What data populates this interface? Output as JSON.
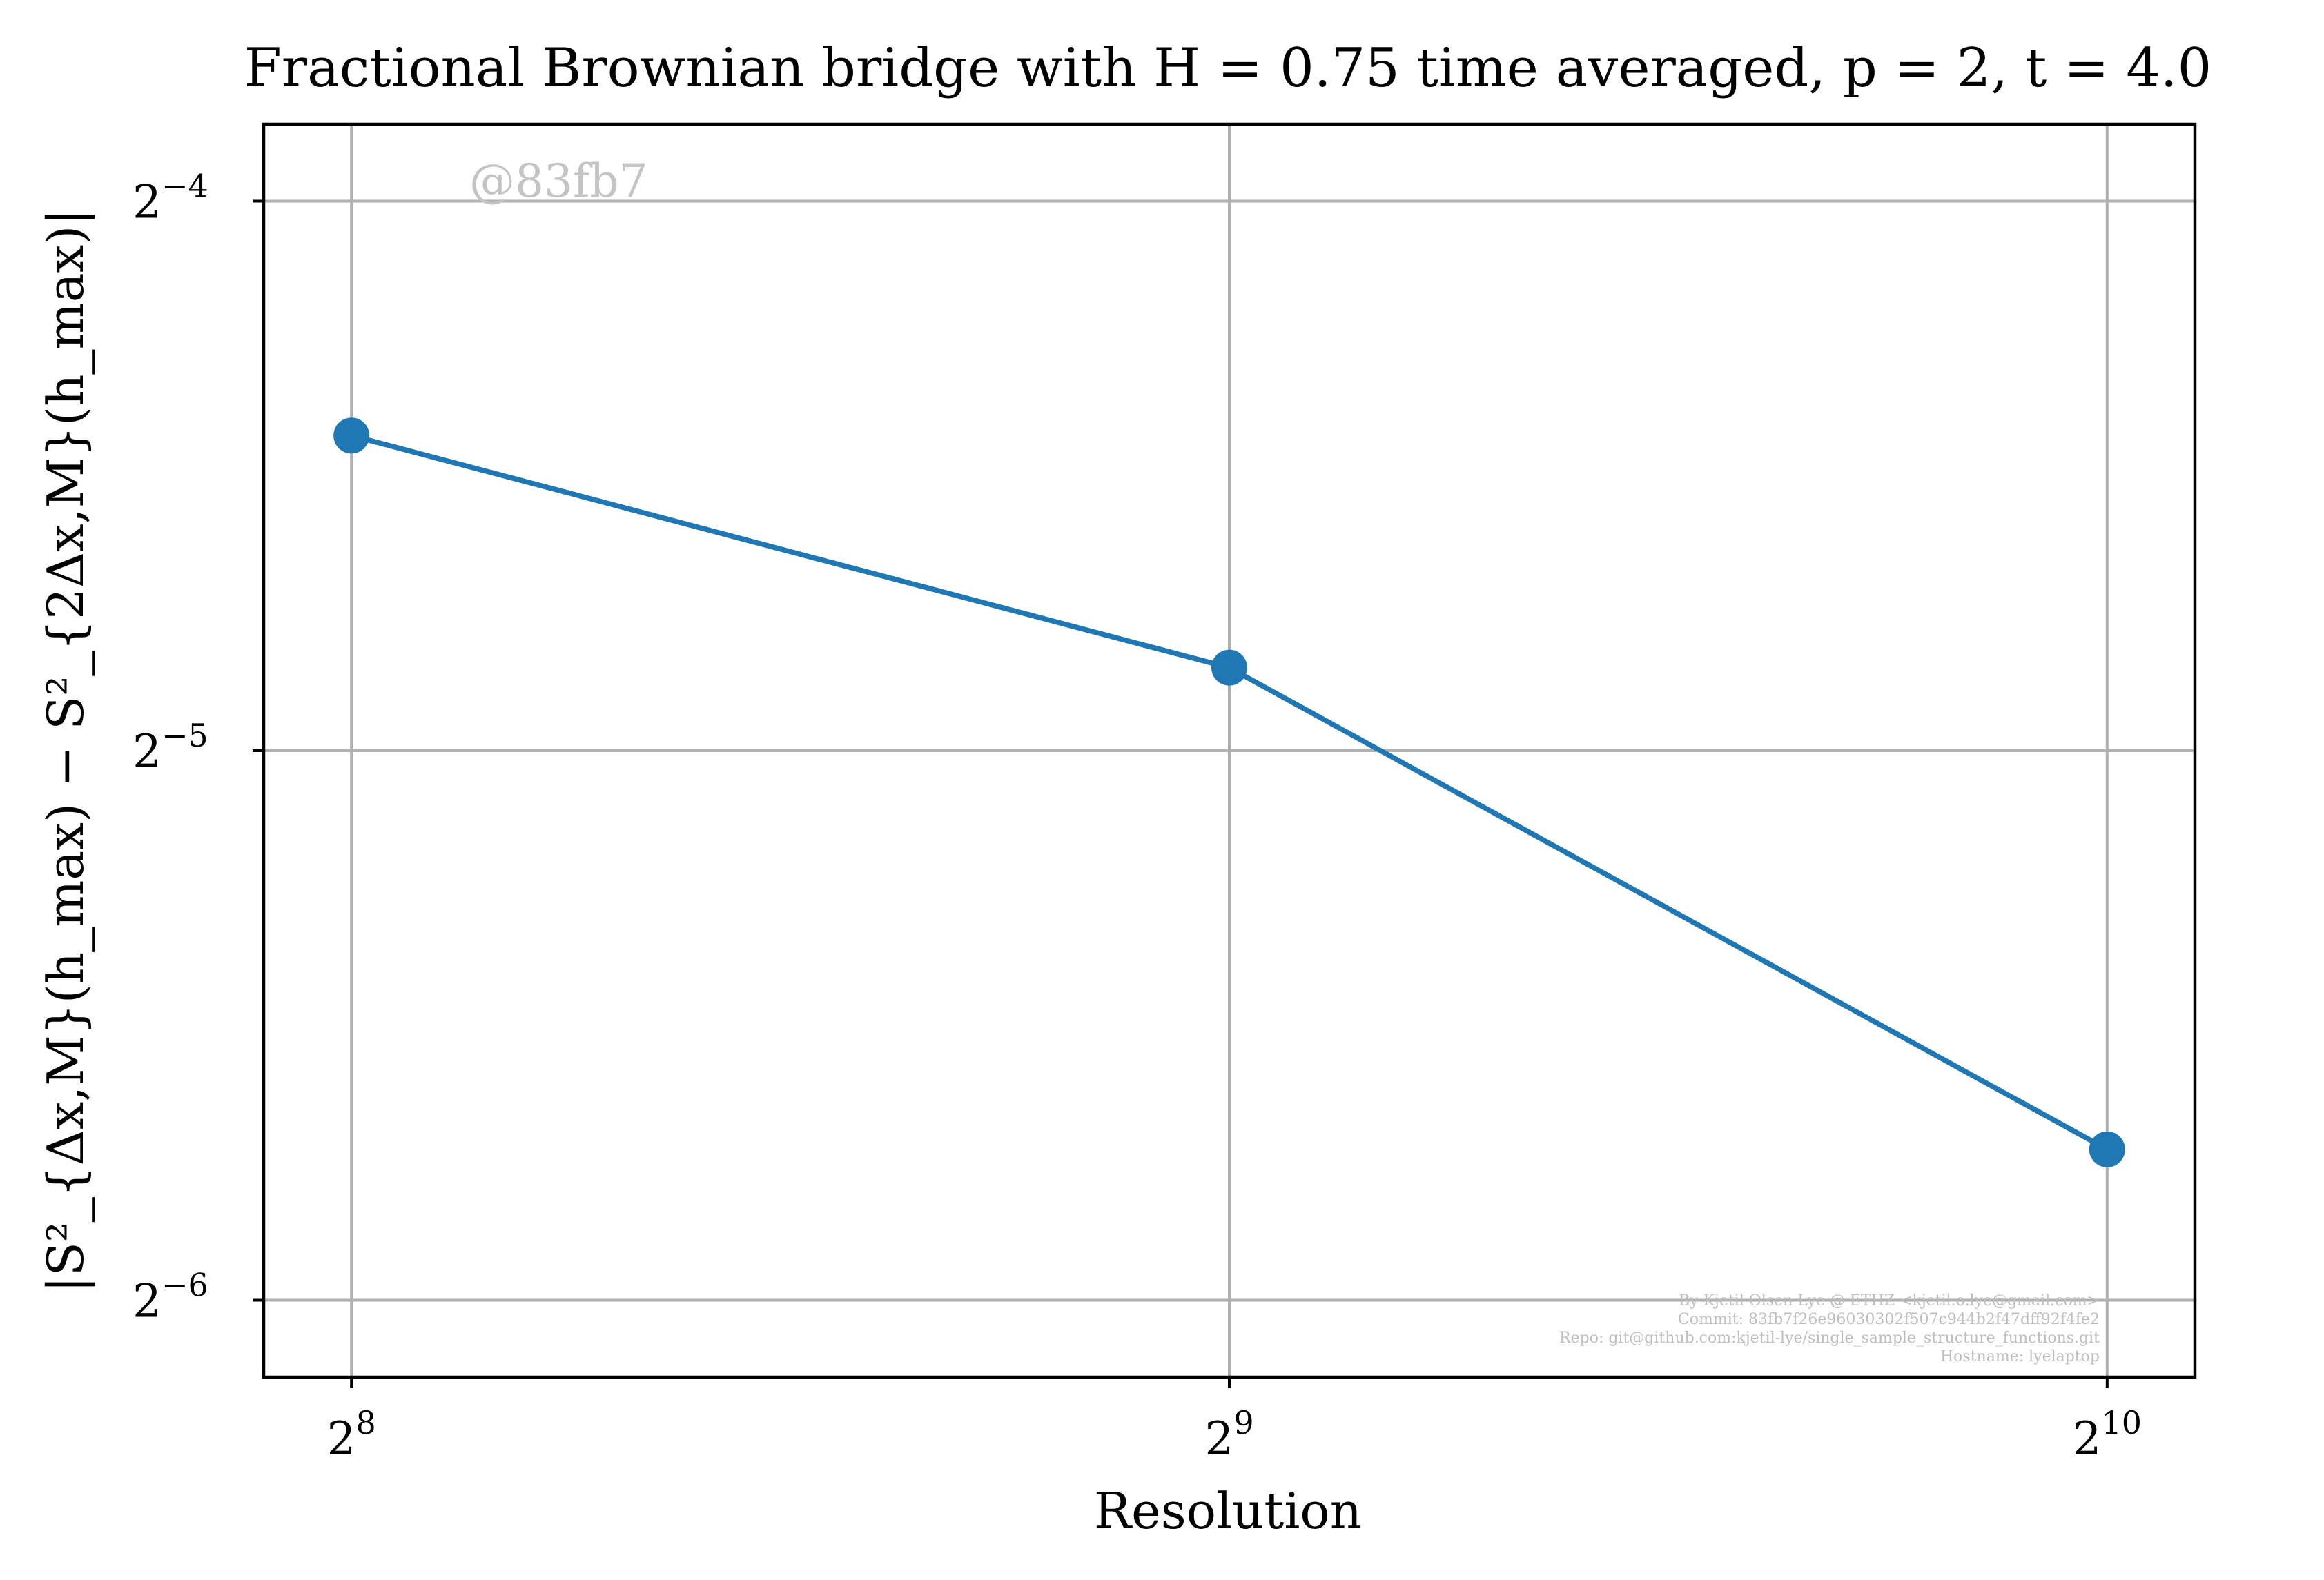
{
  "chart_data": {
    "type": "line",
    "title": "Fractional Brownian bridge with H = 0.75 time averaged, p = 2, t = 4.0",
    "xlabel": "Resolution",
    "ylabel": "|S²_{Δx,M}(h_max) − S²_{2Δx,M}(h_max)|",
    "xscale": "log2",
    "yscale": "log2",
    "xticks": [
      {
        "value": 256,
        "base": "2",
        "exp": "8"
      },
      {
        "value": 512,
        "base": "2",
        "exp": "9"
      },
      {
        "value": 1024,
        "base": "2",
        "exp": "10"
      }
    ],
    "yticks": [
      {
        "value": 0.0625,
        "base": "2",
        "exp": "−4"
      },
      {
        "value": 0.03125,
        "base": "2",
        "exp": "−5"
      },
      {
        "value": 0.015625,
        "base": "2",
        "exp": "−6"
      }
    ],
    "xlim_log2": [
      7.9,
      10.1
    ],
    "ylim_log2": [
      -6.14,
      -3.86
    ],
    "grid": true,
    "series": [
      {
        "color": "#1f77b4",
        "marker": "circle",
        "x": [
          256,
          512,
          1024
        ],
        "y": [
          0.0465,
          0.0347,
          0.0189
        ]
      }
    ]
  },
  "watermark": "@83fb7",
  "credits": [
    "By Kjetil Olsen Lye @ ETHZ <kjetil.o.lye@gmail.com>",
    "Commit: 83fb7f26e96030302f507c944b2f47dff92f4fe2",
    "Repo: git@github.com:kjetil-lye/single_sample_structure_functions.git",
    "Hostname: lyelaptop"
  ]
}
